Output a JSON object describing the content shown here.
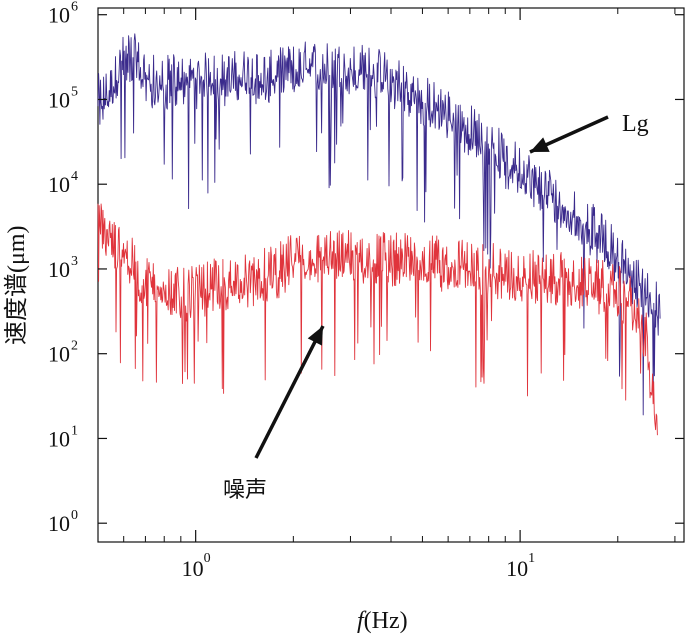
{
  "chart_data": {
    "type": "line",
    "title": "",
    "xlabel": "(Hz)",
    "xlabel_italic": "f",
    "ylabel": "速度谱(μm)",
    "x_scale": "log",
    "y_scale": "log",
    "xlim": [
      0.5,
      32
    ],
    "ylim": [
      0.6,
      1200000
    ],
    "x_ticks": [
      {
        "base": "10",
        "exp": "0",
        "value": 1
      },
      {
        "base": "10",
        "exp": "1",
        "value": 10
      }
    ],
    "y_ticks": [
      {
        "base": "10",
        "exp": "0",
        "value": 1
      },
      {
        "base": "10",
        "exp": "1",
        "value": 10
      },
      {
        "base": "10",
        "exp": "2",
        "value": 100
      },
      {
        "base": "10",
        "exp": "3",
        "value": 1000
      },
      {
        "base": "10",
        "exp": "4",
        "value": 10000
      },
      {
        "base": "10",
        "exp": "5",
        "value": 100000
      },
      {
        "base": "10",
        "exp": "6",
        "value": 1000000
      }
    ],
    "grid": false,
    "legend": "none",
    "series": [
      {
        "name": "Lg",
        "color": "#3a2a8c",
        "x": [
          0.5,
          0.55,
          0.6,
          0.63,
          0.7,
          0.78,
          0.85,
          0.9,
          0.95,
          1.05,
          1.2,
          1.4,
          1.7,
          2.0,
          2.2,
          2.4,
          2.6,
          3.0,
          3.5,
          4.0,
          4.5,
          5.0,
          6.0,
          7.0,
          8.0,
          9.0,
          10.0,
          11.5,
          13.0,
          15.0,
          17.0,
          19.0,
          21.0,
          23.0,
          25.0,
          27.0
        ],
        "y": [
          100000,
          130000,
          300000,
          350000,
          200000,
          150000,
          180000,
          170000,
          160000,
          180000,
          180000,
          200000,
          190000,
          230000,
          250000,
          260000,
          240000,
          240000,
          220000,
          180000,
          140000,
          100000,
          70000,
          45000,
          30000,
          20000,
          15000,
          10000,
          7000,
          4500,
          2800,
          1800,
          1100,
          700,
          480,
          330
        ],
        "annotation": "Lg"
      },
      {
        "name": "噪声",
        "color": "#e0343c",
        "x": [
          0.5,
          0.55,
          0.6,
          0.65,
          0.7,
          0.8,
          0.9,
          1.0,
          1.2,
          1.5,
          1.8,
          2.0,
          2.5,
          3.0,
          4.0,
          5.0,
          7.0,
          10.0,
          13.0,
          16.0,
          19.0,
          21.0,
          23.0,
          24.5,
          25.5,
          26.5
        ],
        "y": [
          3500,
          2200,
          1800,
          1000,
          700,
          650,
          500,
          550,
          700,
          800,
          1000,
          1400,
          1400,
          1500,
          1400,
          1300,
          1100,
          900,
          800,
          700,
          600,
          500,
          350,
          150,
          40,
          15
        ],
        "annotation": "噪声"
      }
    ]
  }
}
